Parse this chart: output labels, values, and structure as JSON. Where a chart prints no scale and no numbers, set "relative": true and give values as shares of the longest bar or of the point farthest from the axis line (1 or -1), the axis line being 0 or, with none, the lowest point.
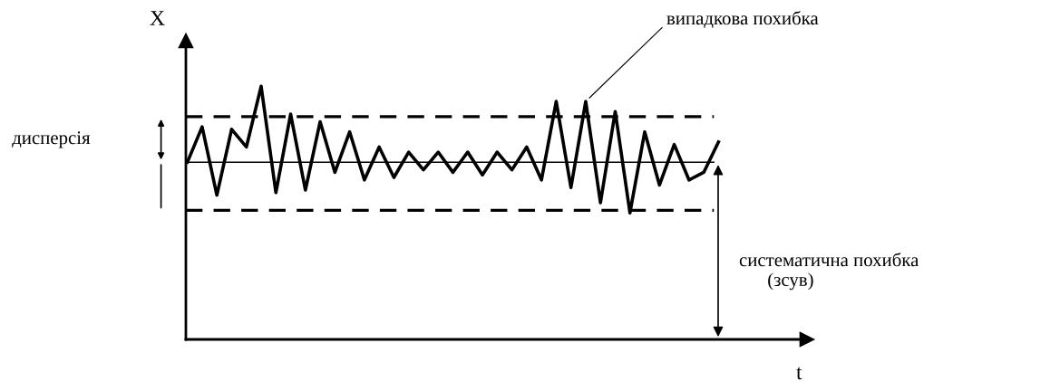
{
  "chart_data": {
    "type": "line",
    "relative": true,
    "xlabel": "t",
    "ylabel": "X",
    "categories": [
      null,
      null,
      null,
      null,
      null,
      null,
      null,
      null,
      null,
      null,
      null,
      null,
      null,
      null,
      null,
      null,
      null,
      null,
      null,
      null,
      null,
      null,
      null,
      null,
      null,
      null,
      null,
      null,
      null,
      null,
      null,
      null,
      null,
      null,
      null,
      null,
      null
    ],
    "series": [
      {
        "color": "#000000",
        "values": [
          0.7,
          0.84,
          0.57,
          0.83,
          0.76,
          1.0,
          0.58,
          0.89,
          0.59,
          0.86,
          0.66,
          0.82,
          0.63,
          0.76,
          0.64,
          0.74,
          0.67,
          0.74,
          0.66,
          0.74,
          0.65,
          0.74,
          0.67,
          0.76,
          0.63,
          0.94,
          0.6,
          0.94,
          0.54,
          0.9,
          0.5,
          0.82,
          0.61,
          0.77,
          0.63,
          0.66,
          0.78
        ]
      }
    ],
    "ref_lines": [
      {
        "axis": "y",
        "value": 0.88,
        "color": "#000000",
        "line_style": "dashed"
      },
      {
        "axis": "y",
        "value": 0.7,
        "color": "#000000",
        "line_style": "solid"
      },
      {
        "axis": "y",
        "value": 0.51,
        "color": "#000000",
        "line_style": "dashed"
      }
    ],
    "annotations": [
      "дисперсія",
      "випадкова похибка",
      "систематична похибка\n      (зсув)"
    ],
    "marker": "none",
    "line_style": "solid",
    "grid": false,
    "legend": false
  }
}
